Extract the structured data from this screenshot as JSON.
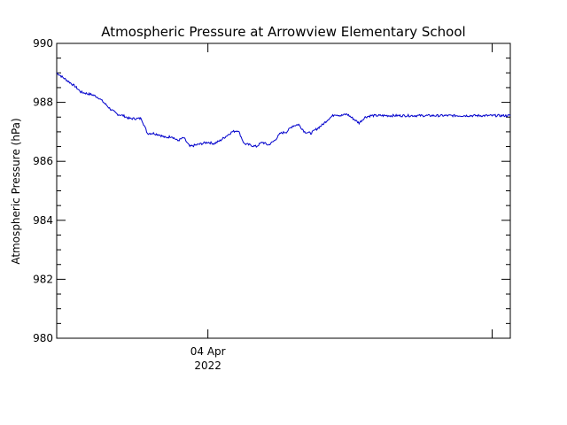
{
  "chart_data": {
    "type": "line",
    "title": "Atmospheric Pressure at Arrowview Elementary School",
    "ylabel": "Atmospheric Pressure (hPa)",
    "xlabel": "",
    "ylim": [
      980,
      990
    ],
    "xlim": [
      -0.5,
      1.0
    ],
    "y_ticks": [
      980,
      982,
      984,
      986,
      988,
      990
    ],
    "x_tick_labels": [
      {
        "x": 0.0,
        "label": "04 Apr",
        "sublabel": "2022"
      }
    ],
    "grid": false,
    "line_color": "#0000cc",
    "series": [
      {
        "x": [
          -0.5,
          -0.48,
          -0.46,
          -0.44,
          -0.42,
          -0.4,
          -0.38,
          -0.36,
          -0.34,
          -0.32,
          -0.3,
          -0.28,
          -0.26,
          -0.24,
          -0.22,
          -0.2,
          -0.18,
          -0.16,
          -0.14,
          -0.12,
          -0.1,
          -0.08,
          -0.06,
          -0.04,
          -0.02,
          0.0,
          0.02,
          0.04,
          0.06,
          0.08,
          0.1,
          0.12,
          0.14,
          0.16,
          0.18,
          0.2,
          0.22,
          0.24,
          0.26,
          0.28,
          0.3,
          0.32,
          0.34,
          0.36,
          0.38,
          0.4,
          0.42,
          0.44,
          0.46,
          0.48,
          0.5,
          0.52,
          0.54,
          0.56,
          0.58,
          0.6,
          0.62,
          0.64,
          0.66,
          0.68,
          0.7,
          0.72,
          0.74,
          0.76,
          0.78,
          0.8,
          0.82,
          0.84,
          0.86,
          0.88,
          0.9,
          0.92,
          0.94,
          0.96,
          0.98,
          1.0
        ],
        "values": [
          989.0,
          988.85,
          988.7,
          988.55,
          988.35,
          988.3,
          988.25,
          988.15,
          987.95,
          987.75,
          987.6,
          987.55,
          987.45,
          987.45,
          987.45,
          986.95,
          986.95,
          986.9,
          986.8,
          986.85,
          986.7,
          986.8,
          986.5,
          986.55,
          986.6,
          986.65,
          986.6,
          986.7,
          986.85,
          987.0,
          987.05,
          986.6,
          986.55,
          986.5,
          986.65,
          986.55,
          986.7,
          986.95,
          987.0,
          987.2,
          987.25,
          987.0,
          986.95,
          987.1,
          987.25,
          987.45,
          987.6,
          987.55,
          987.6,
          987.45,
          987.3,
          987.5,
          987.55,
          987.55,
          987.55,
          987.55,
          987.55,
          987.55,
          987.55,
          987.55,
          987.55,
          987.55,
          987.55,
          987.55,
          987.55,
          987.55,
          987.55,
          987.55,
          987.55,
          987.55,
          987.55,
          987.55,
          987.55,
          987.55,
          987.55,
          987.55
        ]
      }
    ]
  }
}
